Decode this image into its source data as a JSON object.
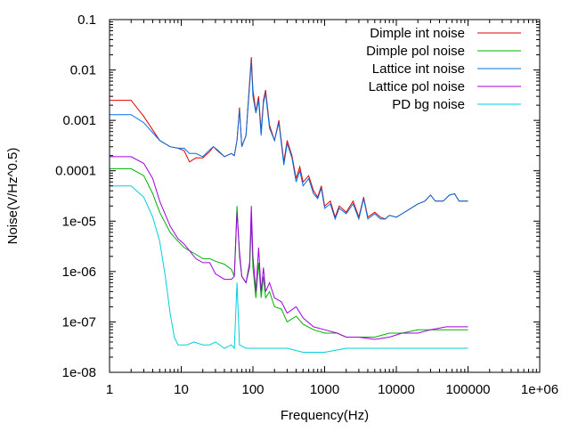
{
  "chart_data": {
    "type": "line",
    "xlabel": "Frequency(Hz)",
    "ylabel": "Noise(V/Hz^0.5)",
    "x_scale": "log",
    "y_scale": "log",
    "xlim": [
      1,
      1000000
    ],
    "ylim": [
      1e-08,
      0.1
    ],
    "grid": false,
    "legend_position": "top-right",
    "x_tick_labels": [
      "1",
      "10",
      "100",
      "1000",
      "10000",
      "100000",
      "1e+06"
    ],
    "x_tick_values": [
      1,
      10,
      100,
      1000,
      10000,
      100000,
      1000000
    ],
    "y_tick_labels": [
      "0.1",
      "0.01",
      "0.001",
      "0.0001",
      "1e-05",
      "1e-06",
      "1e-07",
      "1e-08"
    ],
    "y_tick_values": [
      0.1,
      0.01,
      0.001,
      0.0001,
      1e-05,
      1e-06,
      1e-07,
      1e-08
    ],
    "series": [
      {
        "name": "Dimple int noise",
        "color": "#e00000",
        "points": [
          [
            1,
            0.0025
          ],
          [
            2,
            0.0025
          ],
          [
            3,
            0.0012
          ],
          [
            5,
            0.0004
          ],
          [
            7,
            0.0003
          ],
          [
            9,
            0.00028
          ],
          [
            11,
            0.00025
          ],
          [
            13,
            0.00015
          ],
          [
            16,
            0.00018
          ],
          [
            20,
            0.00018
          ],
          [
            25,
            0.00024
          ],
          [
            28,
            0.0003
          ],
          [
            32,
            0.00025
          ],
          [
            40,
            0.00019
          ],
          [
            50,
            0.00022
          ],
          [
            55,
            0.0002
          ],
          [
            60,
            0.0004
          ],
          [
            65,
            0.0018
          ],
          [
            70,
            0.0003
          ],
          [
            80,
            0.0005
          ],
          [
            90,
            0.006
          ],
          [
            95,
            0.018
          ],
          [
            100,
            0.004
          ],
          [
            110,
            0.0015
          ],
          [
            120,
            0.003
          ],
          [
            130,
            0.0006
          ],
          [
            140,
            0.0025
          ],
          [
            150,
            0.004
          ],
          [
            170,
            0.0008
          ],
          [
            200,
            0.0004
          ],
          [
            230,
            0.001
          ],
          [
            270,
            0.00015
          ],
          [
            300,
            0.0004
          ],
          [
            350,
            0.0002
          ],
          [
            400,
            7e-05
          ],
          [
            450,
            0.00012
          ],
          [
            500,
            6e-05
          ],
          [
            600,
            8e-05
          ],
          [
            700,
            4e-05
          ],
          [
            800,
            3e-05
          ],
          [
            900,
            5e-05
          ],
          [
            1000,
            2e-05
          ],
          [
            1200,
            2.5e-05
          ],
          [
            1400,
            1.2e-05
          ],
          [
            1600,
            2e-05
          ],
          [
            2000,
            1.5e-05
          ],
          [
            2500,
            2.5e-05
          ],
          [
            3000,
            1.2e-05
          ],
          [
            3500,
            3e-05
          ],
          [
            4000,
            1.2e-05
          ],
          [
            5000,
            1.5e-05
          ],
          [
            6000,
            1.2e-05
          ],
          [
            7000,
            1.1e-05
          ],
          [
            8000,
            1.3e-05
          ],
          [
            10000,
            1.2e-05
          ],
          [
            12000,
            1.4e-05
          ],
          [
            15000,
            1.7e-05
          ],
          [
            20000,
            2.2e-05
          ],
          [
            25000,
            2.5e-05
          ],
          [
            30000,
            3.3e-05
          ],
          [
            35000,
            2.5e-05
          ],
          [
            45000,
            2.5e-05
          ],
          [
            55000,
            3.3e-05
          ],
          [
            65000,
            3.5e-05
          ],
          [
            75000,
            2.5e-05
          ],
          [
            90000,
            2.5e-05
          ],
          [
            100000,
            2.5e-05
          ]
        ]
      },
      {
        "name": "Dimple pol noise",
        "color": "#00b000",
        "points": [
          [
            1,
            0.00011
          ],
          [
            2,
            0.00011
          ],
          [
            3,
            8e-05
          ],
          [
            4,
            3.5e-05
          ],
          [
            5,
            1.5e-05
          ],
          [
            7,
            6e-06
          ],
          [
            9,
            4e-06
          ],
          [
            11,
            3e-06
          ],
          [
            13,
            2.6e-06
          ],
          [
            16,
            2.2e-06
          ],
          [
            20,
            1.8e-06
          ],
          [
            25,
            1.8e-06
          ],
          [
            30,
            1.6e-06
          ],
          [
            40,
            1.4e-06
          ],
          [
            50,
            1.1e-06
          ],
          [
            55,
            8e-07
          ],
          [
            60,
            2e-05
          ],
          [
            65,
            2e-06
          ],
          [
            70,
            8e-07
          ],
          [
            80,
            6e-07
          ],
          [
            90,
            1.2e-06
          ],
          [
            95,
            1e-05
          ],
          [
            100,
            1.2e-06
          ],
          [
            110,
            3e-07
          ],
          [
            120,
            1.5e-06
          ],
          [
            130,
            3e-07
          ],
          [
            140,
            8e-07
          ],
          [
            150,
            3e-07
          ],
          [
            170,
            4e-07
          ],
          [
            200,
            2e-07
          ],
          [
            250,
            1.8e-07
          ],
          [
            300,
            1e-07
          ],
          [
            400,
            1.3e-07
          ],
          [
            500,
            9e-08
          ],
          [
            700,
            7e-08
          ],
          [
            1000,
            6e-08
          ],
          [
            1500,
            6e-08
          ],
          [
            2000,
            5e-08
          ],
          [
            3000,
            5e-08
          ],
          [
            5000,
            5e-08
          ],
          [
            8000,
            6e-08
          ],
          [
            12000,
            6e-08
          ],
          [
            20000,
            7e-08
          ],
          [
            30000,
            7e-08
          ],
          [
            50000,
            7e-08
          ],
          [
            70000,
            7e-08
          ],
          [
            100000,
            7e-08
          ]
        ]
      },
      {
        "name": "Lattice int noise",
        "color": "#0070e0",
        "points": [
          [
            1,
            0.0013
          ],
          [
            2,
            0.0013
          ],
          [
            3,
            0.0009
          ],
          [
            5,
            0.0004
          ],
          [
            7,
            0.0003
          ],
          [
            9,
            0.00028
          ],
          [
            11,
            0.00028
          ],
          [
            13,
            0.00022
          ],
          [
            16,
            0.00022
          ],
          [
            20,
            0.00019
          ],
          [
            25,
            0.00026
          ],
          [
            28,
            0.0003
          ],
          [
            32,
            0.00026
          ],
          [
            40,
            0.00019
          ],
          [
            50,
            0.00022
          ],
          [
            55,
            0.0002
          ],
          [
            60,
            0.0004
          ],
          [
            65,
            0.0016
          ],
          [
            70,
            0.0003
          ],
          [
            80,
            0.0005
          ],
          [
            90,
            0.005
          ],
          [
            95,
            0.015
          ],
          [
            100,
            0.003
          ],
          [
            110,
            0.0014
          ],
          [
            120,
            0.0025
          ],
          [
            130,
            0.0005
          ],
          [
            140,
            0.0022
          ],
          [
            150,
            0.0035
          ],
          [
            170,
            0.0007
          ],
          [
            200,
            0.0004
          ],
          [
            230,
            0.0009
          ],
          [
            270,
            0.00013
          ],
          [
            300,
            0.00035
          ],
          [
            350,
            0.00018
          ],
          [
            400,
            6e-05
          ],
          [
            450,
            0.0001
          ],
          [
            500,
            5e-05
          ],
          [
            600,
            7e-05
          ],
          [
            700,
            3.5e-05
          ],
          [
            800,
            2.8e-05
          ],
          [
            900,
            4.5e-05
          ],
          [
            1000,
            1.8e-05
          ],
          [
            1200,
            2.2e-05
          ],
          [
            1400,
            1.1e-05
          ],
          [
            1600,
            1.8e-05
          ],
          [
            2000,
            1.4e-05
          ],
          [
            2500,
            2.2e-05
          ],
          [
            3000,
            1.1e-05
          ],
          [
            3500,
            2.8e-05
          ],
          [
            4000,
            1.1e-05
          ],
          [
            5000,
            1.4e-05
          ],
          [
            6000,
            1.1e-05
          ],
          [
            7000,
            1.1e-05
          ],
          [
            8000,
            1.3e-05
          ],
          [
            10000,
            1.2e-05
          ],
          [
            12000,
            1.4e-05
          ],
          [
            15000,
            1.7e-05
          ],
          [
            20000,
            2.2e-05
          ],
          [
            25000,
            2.5e-05
          ],
          [
            30000,
            3.3e-05
          ],
          [
            35000,
            2.5e-05
          ],
          [
            45000,
            2.5e-05
          ],
          [
            55000,
            3.3e-05
          ],
          [
            65000,
            3.5e-05
          ],
          [
            75000,
            2.5e-05
          ],
          [
            90000,
            2.5e-05
          ],
          [
            100000,
            2.5e-05
          ]
        ]
      },
      {
        "name": "Lattice pol noise",
        "color": "#a000e0",
        "points": [
          [
            1,
            0.00019
          ],
          [
            2,
            0.00019
          ],
          [
            3,
            0.00014
          ],
          [
            4,
            7e-05
          ],
          [
            5,
            2.5e-05
          ],
          [
            7,
            8e-06
          ],
          [
            9,
            4.5e-06
          ],
          [
            11,
            3.5e-06
          ],
          [
            13,
            2.6e-06
          ],
          [
            16,
            1.8e-06
          ],
          [
            20,
            1.5e-06
          ],
          [
            25,
            1.5e-06
          ],
          [
            30,
            9e-07
          ],
          [
            40,
            7e-07
          ],
          [
            50,
            7e-07
          ],
          [
            55,
            8e-07
          ],
          [
            60,
            1.5e-05
          ],
          [
            65,
            2.5e-06
          ],
          [
            70,
            8e-07
          ],
          [
            80,
            6e-07
          ],
          [
            90,
            1.5e-06
          ],
          [
            95,
            2e-05
          ],
          [
            100,
            2e-06
          ],
          [
            110,
            4e-07
          ],
          [
            120,
            3e-06
          ],
          [
            130,
            4e-07
          ],
          [
            140,
            1.2e-06
          ],
          [
            150,
            4e-07
          ],
          [
            170,
            6e-07
          ],
          [
            200,
            3e-07
          ],
          [
            250,
            2.5e-07
          ],
          [
            300,
            1.5e-07
          ],
          [
            400,
            2e-07
          ],
          [
            500,
            1.2e-07
          ],
          [
            700,
            8e-08
          ],
          [
            1000,
            7e-08
          ],
          [
            1500,
            6e-08
          ],
          [
            2000,
            5e-08
          ],
          [
            3000,
            5e-08
          ],
          [
            5000,
            4.5e-08
          ],
          [
            8000,
            5e-08
          ],
          [
            12000,
            6e-08
          ],
          [
            20000,
            6e-08
          ],
          [
            30000,
            7e-08
          ],
          [
            50000,
            8e-08
          ],
          [
            70000,
            8e-08
          ],
          [
            100000,
            8e-08
          ]
        ]
      },
      {
        "name": "PD bg noise",
        "color": "#00d0d8",
        "points": [
          [
            1,
            5e-05
          ],
          [
            2,
            5e-05
          ],
          [
            3,
            3e-05
          ],
          [
            4,
            1.2e-05
          ],
          [
            5,
            4e-06
          ],
          [
            6,
            8e-07
          ],
          [
            7,
            1.5e-07
          ],
          [
            8,
            5e-08
          ],
          [
            9,
            3.5e-08
          ],
          [
            12,
            3.5e-08
          ],
          [
            15,
            4e-08
          ],
          [
            20,
            3.5e-08
          ],
          [
            25,
            3.5e-08
          ],
          [
            30,
            4e-08
          ],
          [
            40,
            3e-08
          ],
          [
            50,
            3.5e-08
          ],
          [
            55,
            3e-08
          ],
          [
            60,
            6e-07
          ],
          [
            65,
            3.5e-08
          ],
          [
            80,
            3e-08
          ],
          [
            100,
            3e-08
          ],
          [
            150,
            3e-08
          ],
          [
            200,
            3e-08
          ],
          [
            300,
            3e-08
          ],
          [
            500,
            2.5e-08
          ],
          [
            1000,
            2.5e-08
          ],
          [
            2000,
            3e-08
          ],
          [
            5000,
            3e-08
          ],
          [
            10000,
            3e-08
          ],
          [
            20000,
            3e-08
          ],
          [
            50000,
            3e-08
          ],
          [
            100000,
            3e-08
          ]
        ]
      }
    ]
  }
}
